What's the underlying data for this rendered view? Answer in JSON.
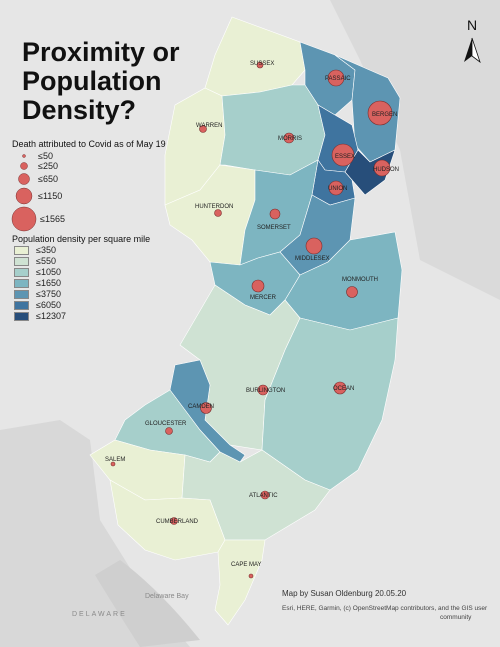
{
  "title_line1": "Proximity or",
  "title_line2": "Population",
  "title_line3": "Density?",
  "north_label": "N",
  "death_legend": {
    "title": "Death attributed to Covid as of May 19",
    "items": [
      "≤50",
      "≤250",
      "≤650",
      "≤1150",
      "≤1565"
    ]
  },
  "density_legend": {
    "title": "Population density per square mile",
    "items": [
      "≤350",
      "≤550",
      "≤1050",
      "≤1650",
      "≤3750",
      "≤6050",
      "≤12307"
    ],
    "colors": [
      "#e9f0d4",
      "#cfe2d3",
      "#a6cfcb",
      "#7db5c1",
      "#5d95b2",
      "#3f749f",
      "#274e7a"
    ]
  },
  "counties": [
    {
      "name": "SUSSEX",
      "density_class": 0
    },
    {
      "name": "PASSAIC",
      "density_class": 4
    },
    {
      "name": "BERGEN",
      "density_class": 4
    },
    {
      "name": "WARREN",
      "density_class": 0
    },
    {
      "name": "MORRIS",
      "density_class": 2
    },
    {
      "name": "ESSEX",
      "density_class": 5
    },
    {
      "name": "HUDSON",
      "density_class": 6
    },
    {
      "name": "UNION",
      "density_class": 5
    },
    {
      "name": "HUNTERDON",
      "density_class": 0
    },
    {
      "name": "SOMERSET",
      "density_class": 3
    },
    {
      "name": "MIDDLESEX",
      "density_class": 4
    },
    {
      "name": "MONMOUTH",
      "density_class": 3
    },
    {
      "name": "MERCER",
      "density_class": 3
    },
    {
      "name": "BURLINGTON",
      "density_class": 1
    },
    {
      "name": "OCEAN",
      "density_class": 2
    },
    {
      "name": "CAMDEN",
      "density_class": 4
    },
    {
      "name": "GLOUCESTER",
      "density_class": 2
    },
    {
      "name": "SALEM",
      "density_class": 0
    },
    {
      "name": "ATLANTIC",
      "density_class": 1
    },
    {
      "name": "CUMBERLAND",
      "density_class": 0
    },
    {
      "name": "CAPE MAY",
      "density_class": 0
    }
  ],
  "place_labels": {
    "delaware_bay": "Delaware Bay",
    "delaware": "DELAWARE"
  },
  "credit_line1": "Map by Susan Oldenburg 20.05.20",
  "credit_line2": "Esri, HERE, Garmin, (c) OpenStreetMap contributors, and the GIS user",
  "credit_line3": "community"
}
